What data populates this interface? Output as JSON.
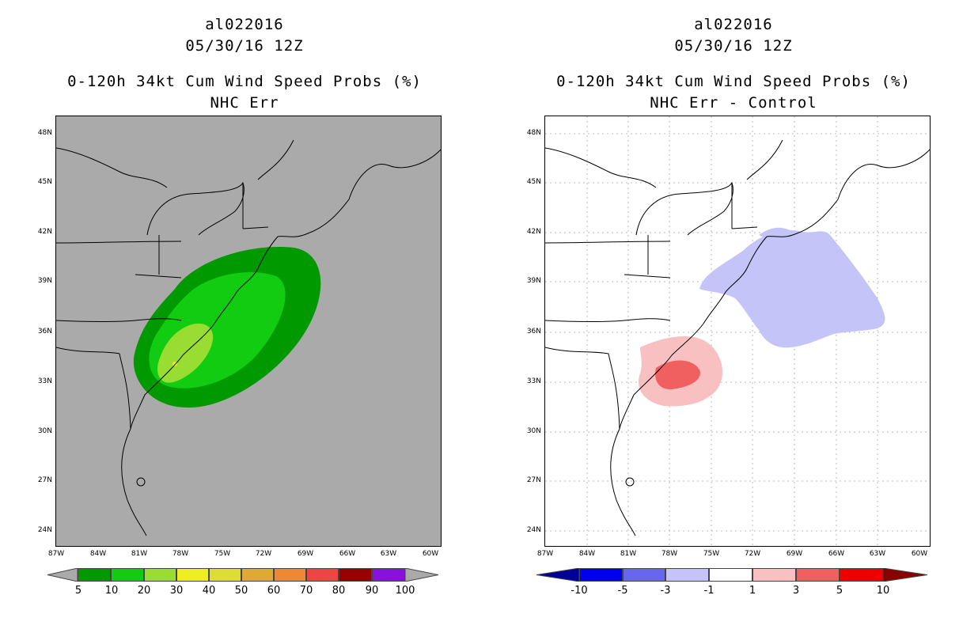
{
  "left": {
    "title_line1": "al022016",
    "title_line2": "05/30/16 12Z",
    "title_line3": "0-120h 34kt Cum Wind Speed Probs (%)",
    "title_line4": "NHC Err",
    "background": "#aaaaaa",
    "colorbar": {
      "colors": [
        "#009900",
        "#11cc11",
        "#99dd33",
        "#eeee22",
        "#dddd33",
        "#ddaa33",
        "#ee8833",
        "#ee4444",
        "#990000",
        "#8811dd"
      ],
      "end_color": "#aaaaaa",
      "labels": [
        "5",
        "10",
        "20",
        "30",
        "40",
        "50",
        "60",
        "70",
        "80",
        "90",
        "100"
      ]
    }
  },
  "right": {
    "title_line1": "al022016",
    "title_line2": "05/30/16 12Z",
    "title_line3": "0-120h 34kt Cum Wind Speed Probs (%)",
    "title_line4": "NHC Err - Control",
    "background": "#ffffff",
    "colorbar": {
      "colors": [
        "#000099",
        "#0000ee",
        "#6666ee",
        "#c4c4f8",
        "#ffffff",
        "#f8c0c0",
        "#f06060",
        "#ee0000",
        "#880000"
      ],
      "labels": [
        "-10",
        "-5",
        "-3",
        "-1",
        "1",
        "3",
        "5",
        "10"
      ]
    }
  },
  "lat_labels": [
    "48N",
    "45N",
    "42N",
    "39N",
    "36N",
    "33N",
    "30N",
    "27N",
    "24N"
  ],
  "lon_labels": [
    "87W",
    "84W",
    "81W",
    "78W",
    "75W",
    "72W",
    "69W",
    "66W",
    "63W",
    "60W"
  ]
}
